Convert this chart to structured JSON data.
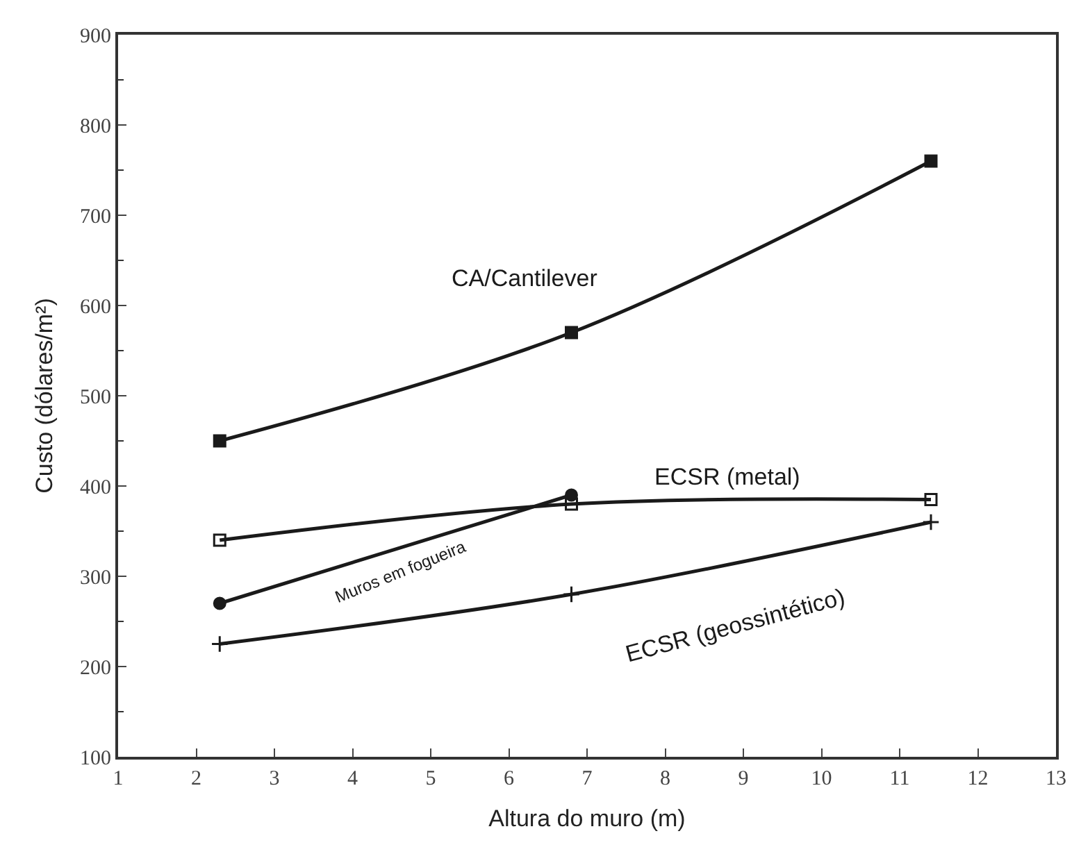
{
  "chart_data": {
    "type": "line",
    "xlabel": "Altura do muro (m)",
    "ylabel": "Custo (dólares/m²)",
    "xlim": [
      1,
      13
    ],
    "xticks": [
      1,
      2,
      3,
      4,
      5,
      6,
      7,
      8,
      9,
      10,
      11,
      12,
      13
    ],
    "ylim": [
      100,
      900
    ],
    "yticks": [
      100,
      200,
      300,
      400,
      500,
      600,
      700,
      800,
      900
    ],
    "series": [
      {
        "name": "CA/Cantilever",
        "color": "#1a1a1a",
        "marker": "square",
        "x": [
          2.3,
          6.8,
          11.4
        ],
        "values": [
          450,
          570,
          760
        ]
      },
      {
        "name": "ECSR (metal)",
        "color": "#1a1a1a",
        "marker": "square-open",
        "x": [
          2.3,
          6.8,
          11.4
        ],
        "values": [
          340,
          380,
          385
        ]
      },
      {
        "name": "Muros em fogueira",
        "color": "#1a1a1a",
        "marker": "circle",
        "x": [
          2.3,
          6.8
        ],
        "values": [
          270,
          390
        ]
      },
      {
        "name": "ECSR (geossintético)",
        "color": "#1a1a1a",
        "marker": "cross",
        "x": [
          2.3,
          6.8,
          11.4
        ],
        "values": [
          225,
          280,
          360
        ]
      }
    ]
  }
}
